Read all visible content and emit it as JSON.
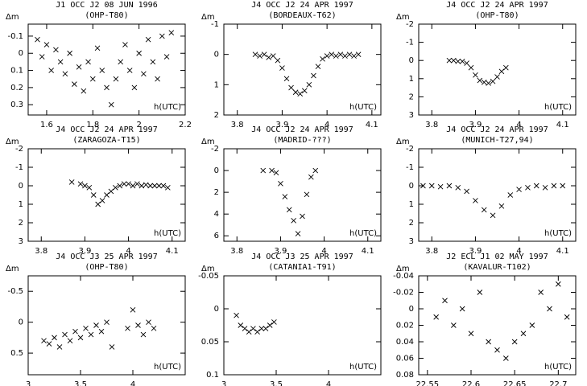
{
  "chart_data": [
    {
      "type": "scatter",
      "title": "J1 OCC J2 08 JUN 1996",
      "subtitle": "(OHP-T80)",
      "y_label": "Δm",
      "x_label": "h(UTC)",
      "x": [
        1.56,
        1.58,
        1.6,
        1.62,
        1.64,
        1.66,
        1.68,
        1.7,
        1.72,
        1.74,
        1.76,
        1.78,
        1.8,
        1.82,
        1.84,
        1.86,
        1.88,
        1.9,
        1.92,
        1.94,
        1.96,
        1.98,
        2.0,
        2.02,
        2.04,
        2.06,
        2.08,
        2.1,
        2.12,
        2.14
      ],
      "values": [
        -0.08,
        0.02,
        -0.05,
        0.1,
        -0.02,
        0.05,
        0.12,
        0.0,
        0.18,
        0.08,
        0.22,
        0.05,
        0.15,
        -0.03,
        0.1,
        0.2,
        0.3,
        0.15,
        0.05,
        -0.05,
        0.1,
        0.2,
        0.0,
        0.12,
        -0.08,
        0.05,
        0.15,
        -0.1,
        0.02,
        -0.12
      ],
      "xlim": [
        1.52,
        2.2
      ],
      "xticks": [
        1.6,
        1.8,
        2,
        2.2
      ],
      "ylim": [
        -0.17,
        0.36
      ],
      "yticks": [
        -0.1,
        0,
        0.1,
        0.2,
        0.3
      ],
      "y_inverted": true,
      "color": "#000000"
    },
    {
      "type": "scatter",
      "title": "J4 OCC J2 24 APR 1997",
      "subtitle": "(BORDEAUX-T62)",
      "y_label": "Δm",
      "x_label": "h(UTC)",
      "x": [
        3.84,
        3.85,
        3.86,
        3.87,
        3.88,
        3.89,
        3.9,
        3.91,
        3.92,
        3.93,
        3.94,
        3.95,
        3.96,
        3.97,
        3.98,
        3.99,
        4.0,
        4.01,
        4.02,
        4.03,
        4.04,
        4.05,
        4.06,
        4.07
      ],
      "values": [
        0,
        0.05,
        0,
        0.1,
        0.05,
        0.2,
        0.45,
        0.8,
        1.1,
        1.25,
        1.3,
        1.2,
        1.0,
        0.7,
        0.4,
        0.15,
        0.05,
        0,
        0.05,
        0,
        0.05,
        0,
        0.05,
        0
      ],
      "xlim": [
        3.77,
        4.12
      ],
      "xticks": [
        3.8,
        3.9,
        4,
        4.1
      ],
      "ylim": [
        -1,
        2
      ],
      "yticks": [
        -1,
        0,
        1,
        2
      ],
      "y_inverted": true,
      "color": "#000000"
    },
    {
      "type": "scatter",
      "title": "J4 OCC J2 24 APR 1997",
      "subtitle": "(OHP-T80)",
      "y_label": "Δm",
      "x_label": "h(UTC)",
      "x": [
        3.84,
        3.85,
        3.86,
        3.87,
        3.88,
        3.89,
        3.9,
        3.91,
        3.92,
        3.93,
        3.94,
        3.95,
        3.96,
        3.97
      ],
      "values": [
        0,
        0,
        0.05,
        0.05,
        0.15,
        0.4,
        0.8,
        1.1,
        1.2,
        1.25,
        1.15,
        0.9,
        0.6,
        0.4
      ],
      "xlim": [
        3.77,
        4.13
      ],
      "xticks": [
        3.8,
        3.9,
        4,
        4.1
      ],
      "ylim": [
        -2,
        3
      ],
      "yticks": [
        -2,
        -1,
        0,
        1,
        2,
        3
      ],
      "y_inverted": true,
      "color": "#000000"
    },
    {
      "type": "scatter",
      "title": "J4 OCC J2 24 APR 1997",
      "subtitle": "(ZARAGOZA-T15)",
      "y_label": "Δm",
      "x_label": "h(UTC)",
      "x": [
        3.87,
        3.89,
        3.9,
        3.91,
        3.92,
        3.93,
        3.94,
        3.95,
        3.96,
        3.97,
        3.98,
        3.99,
        4.0,
        4.01,
        4.02,
        4.03,
        4.04,
        4.05,
        4.06,
        4.07,
        4.08,
        4.09
      ],
      "values": [
        -0.2,
        -0.1,
        0,
        0.1,
        0.5,
        1.0,
        0.8,
        0.5,
        0.3,
        0.1,
        0,
        -0.1,
        -0.1,
        0,
        -0.1,
        0,
        -0.05,
        0,
        0,
        0,
        0,
        0.1
      ],
      "xlim": [
        3.77,
        4.13
      ],
      "xticks": [
        3.8,
        3.9,
        4,
        4.1
      ],
      "ylim": [
        -2,
        3
      ],
      "yticks": [
        -2,
        -1,
        0,
        1,
        2,
        3
      ],
      "y_inverted": true,
      "color": "#000000"
    },
    {
      "type": "scatter",
      "title": "J4 OCC J2 24 APR 1997",
      "subtitle": "(MADRID-???)",
      "y_label": "Δm",
      "x_label": "h(UTC)",
      "x": [
        3.86,
        3.88,
        3.89,
        3.9,
        3.91,
        3.92,
        3.93,
        3.94,
        3.95,
        3.96,
        3.97,
        3.98
      ],
      "values": [
        0,
        0,
        0.2,
        1.2,
        2.4,
        3.6,
        4.6,
        5.8,
        4.2,
        2.2,
        0.6,
        0
      ],
      "xlim": [
        3.77,
        4.13
      ],
      "xticks": [
        3.8,
        3.9,
        4,
        4.1
      ],
      "ylim": [
        -2,
        6.5
      ],
      "yticks": [
        -2,
        0,
        2,
        4,
        6
      ],
      "y_inverted": true,
      "color": "#000000"
    },
    {
      "type": "scatter",
      "title": "J4 OCC J2 24 APR 1997",
      "subtitle": "(MUNICH-T27,94)",
      "y_label": "Δm",
      "x_label": "h(UTC)",
      "x": [
        3.78,
        3.8,
        3.82,
        3.84,
        3.86,
        3.88,
        3.9,
        3.92,
        3.94,
        3.96,
        3.98,
        4.0,
        4.02,
        4.04,
        4.06,
        4.08,
        4.1
      ],
      "values": [
        0,
        0,
        0.05,
        0,
        0.1,
        0.3,
        0.8,
        1.3,
        1.6,
        1.1,
        0.5,
        0.2,
        0.1,
        0,
        0.1,
        0,
        0
      ],
      "xlim": [
        3.77,
        4.13
      ],
      "xticks": [
        3.8,
        3.9,
        4,
        4.1
      ],
      "ylim": [
        -2,
        3
      ],
      "yticks": [
        -2,
        -1,
        0,
        1,
        2,
        3
      ],
      "y_inverted": true,
      "color": "#000000"
    },
    {
      "type": "scatter",
      "title": "J4 OCC J3 25 APR 1997",
      "subtitle": "(OHP-T80)",
      "y_label": "Δm",
      "x_label": "h(UTC)",
      "x": [
        3.15,
        3.2,
        3.25,
        3.3,
        3.35,
        3.4,
        3.45,
        3.5,
        3.55,
        3.6,
        3.65,
        3.7,
        3.75,
        3.8,
        3.95,
        4.0,
        4.05,
        4.1,
        4.15,
        4.2
      ],
      "values": [
        0.3,
        0.35,
        0.25,
        0.4,
        0.2,
        0.3,
        0.15,
        0.25,
        0.1,
        0.2,
        0.05,
        0.15,
        0.0,
        0.4,
        0.1,
        -0.2,
        0.05,
        0.2,
        0.0,
        0.1
      ],
      "xlim": [
        3,
        4.5
      ],
      "xticks": [
        3,
        3.5,
        4
      ],
      "ylim": [
        -0.75,
        0.85
      ],
      "yticks": [
        -0.5,
        0,
        0.5
      ],
      "y_inverted": true,
      "color": "#000000"
    },
    {
      "type": "scatter",
      "title": "J4 OCC J3 25 APR 1997",
      "subtitle": "(CATANIA1-T91)",
      "y_label": "Δm",
      "x_label": "h(UTC)",
      "x": [
        3.12,
        3.16,
        3.2,
        3.24,
        3.28,
        3.32,
        3.36,
        3.4,
        3.44,
        3.48
      ],
      "values": [
        0.01,
        0.025,
        0.03,
        0.035,
        0.03,
        0.035,
        0.03,
        0.03,
        0.025,
        0.02
      ],
      "xlim": [
        3,
        4.5
      ],
      "xticks": [
        3,
        3.5,
        4
      ],
      "ylim": [
        -0.05,
        0.1
      ],
      "yticks": [
        -0.05,
        0,
        0.05,
        0.1
      ],
      "y_inverted": true,
      "color": "#000000"
    },
    {
      "type": "scatter",
      "title": "J2 ECL J1 02 MAY 1997",
      "subtitle": "(KAVALUR-T102)",
      "y_label": "Δm",
      "x_label": "h(UTC)",
      "x": [
        22.56,
        22.57,
        22.58,
        22.59,
        22.6,
        22.61,
        22.62,
        22.63,
        22.64,
        22.65,
        22.66,
        22.67,
        22.68,
        22.69,
        22.7,
        22.71
      ],
      "values": [
        0.01,
        -0.01,
        0.02,
        0.0,
        0.03,
        -0.02,
        0.04,
        0.05,
        0.06,
        0.04,
        0.03,
        0.02,
        -0.02,
        0.0,
        -0.03,
        0.01
      ],
      "xlim": [
        22.54,
        22.72
      ],
      "xticks": [
        22.55,
        22.6,
        22.65,
        22.7
      ],
      "ylim": [
        -0.04,
        0.08
      ],
      "yticks": [
        -0.04,
        -0.02,
        0,
        0.02,
        0.04,
        0.06,
        0.08
      ],
      "y_inverted": true,
      "color": "#000000"
    }
  ]
}
